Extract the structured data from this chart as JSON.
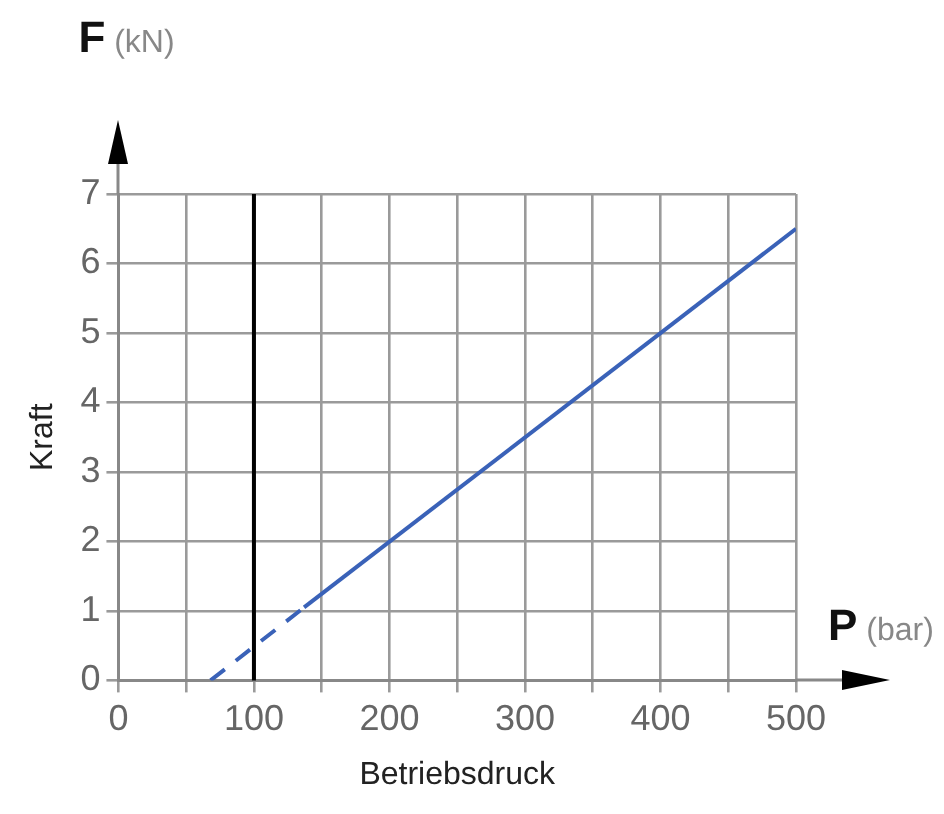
{
  "chart_data": {
    "type": "line",
    "xlabel": "Betriebsdruck",
    "ylabel": "Kraft",
    "annotations": [
      "F (kN)",
      "P (bar)"
    ],
    "xlim": [
      0,
      500
    ],
    "ylim": [
      0,
      7
    ],
    "xticks": [
      0,
      {
        "value": 50,
        "label": null
      },
      100,
      {
        "value": 150,
        "label": null
      },
      200,
      {
        "value": 250,
        "label": null
      },
      300,
      {
        "value": 350,
        "label": null
      },
      400,
      {
        "value": 450,
        "label": null
      },
      500
    ],
    "yticks": [
      0,
      1,
      2,
      3,
      4,
      5,
      6,
      7
    ],
    "grid": true,
    "marker": "none",
    "ref_lines": [
      {
        "axis": "x",
        "value": 100,
        "color": "#000000"
      }
    ],
    "series": [
      {
        "color": "#3a62b8",
        "line_style": "dashed",
        "x": [
          68,
          137
        ],
        "values": [
          0,
          1.05
        ]
      },
      {
        "color": "#3a62b8",
        "line_style": "solid",
        "x": [
          137,
          500
        ],
        "values": [
          1.05,
          6.5
        ]
      }
    ]
  }
}
